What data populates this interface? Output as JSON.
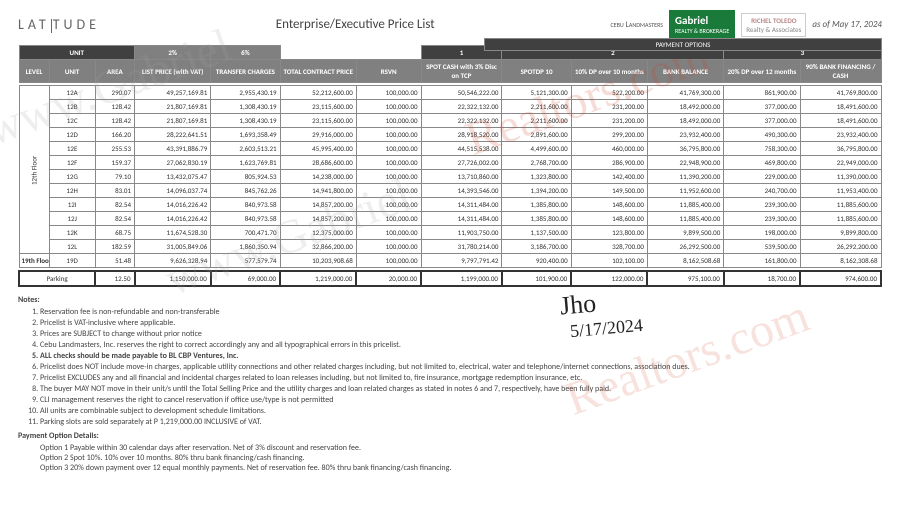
{
  "header": {
    "brand": "LAT | TUDE",
    "title": "Enterprise/Executive Price List",
    "cebu": "CEBU LANDMASTERS",
    "gabriel_name": "Gabriel",
    "gabriel_sub": "REALTY & BROKERAGE",
    "richel_name": "RICHEL TOLEDO",
    "richel_sub": "Realty & Associates",
    "asof": "as of May 17, 2024"
  },
  "columns": {
    "unit_group": "UNIT",
    "level": "LEVEL",
    "unit": "UNIT",
    "area": "AREA",
    "pct2": "2%",
    "pct6": "6%",
    "list_price": "LIST PRICE (with VAT)",
    "transfer": "TRANSFER CHARGES",
    "tcp": "TOTAL CONTRACT PRICE",
    "rsvn": "RSVN",
    "payment_options": "PAYMENT OPTIONS",
    "opt1": "1",
    "opt2": "2",
    "opt3": "3",
    "spot_cash": "SPOT CASH with 3% Disc on TCP",
    "spotdp10": "SPOTDP 10",
    "dp10": "10% DP over 10 months",
    "bank_bal": "BANK BALANCE",
    "dp20": "20% DP over 12 months",
    "fin90": "90% BANK FINANCING / CASH"
  },
  "floors": {
    "f12": "12th Floor",
    "f19": "19th Floor"
  },
  "rows": [
    {
      "unit": "12A",
      "area": "290.07",
      "lp": "49,257,169.81",
      "tc": "2,955,430.19",
      "tcp": "52,212,600.00",
      "rsvn": "100,000.00",
      "sc": "50,546,222.00",
      "sd10": "5,121,300.00",
      "dp10": "522,200.00",
      "bb": "41,769,300.00",
      "dp20": "861,900.00",
      "f90": "41,769,800.00"
    },
    {
      "unit": "12B",
      "area": "128.42",
      "lp": "21,807,169.81",
      "tc": "1,308,430.19",
      "tcp": "23,115,600.00",
      "rsvn": "100,000.00",
      "sc": "22,322,132.00",
      "sd10": "2,211,600.00",
      "dp10": "231,200.00",
      "bb": "18,492,000.00",
      "dp20": "377,000.00",
      "f90": "18,491,600.00"
    },
    {
      "unit": "12C",
      "area": "128.42",
      "lp": "21,807,169.81",
      "tc": "1,308,430.19",
      "tcp": "23,115,600.00",
      "rsvn": "100,000.00",
      "sc": "22,322,132.00",
      "sd10": "2,211,600.00",
      "dp10": "231,200.00",
      "bb": "18,492,000.00",
      "dp20": "377,000.00",
      "f90": "18,491,600.00"
    },
    {
      "unit": "12D",
      "area": "166.20",
      "lp": "28,222,641.51",
      "tc": "1,693,358.49",
      "tcp": "29,916,000.00",
      "rsvn": "100,000.00",
      "sc": "28,918,520.00",
      "sd10": "2,891,600.00",
      "dp10": "299,200.00",
      "bb": "23,932,400.00",
      "dp20": "490,300.00",
      "f90": "23,932,400.00"
    },
    {
      "unit": "12E",
      "area": "255.53",
      "lp": "43,391,886.79",
      "tc": "2,603,513.21",
      "tcp": "45,995,400.00",
      "rsvn": "100,000.00",
      "sc": "44,515,538.00",
      "sd10": "4,499,600.00",
      "dp10": "460,000.00",
      "bb": "36,795,800.00",
      "dp20": "758,300.00",
      "f90": "36,795,800.00"
    },
    {
      "unit": "12F",
      "area": "159.37",
      "lp": "27,062,830.19",
      "tc": "1,623,769.81",
      "tcp": "28,686,600.00",
      "rsvn": "100,000.00",
      "sc": "27,726,002.00",
      "sd10": "2,768,700.00",
      "dp10": "286,900.00",
      "bb": "22,948,900.00",
      "dp20": "469,800.00",
      "f90": "22,949,000.00"
    },
    {
      "unit": "12G",
      "area": "79.10",
      "lp": "13,432,075.47",
      "tc": "805,924.53",
      "tcp": "14,238,000.00",
      "rsvn": "100,000.00",
      "sc": "13,710,860.00",
      "sd10": "1,323,800.00",
      "dp10": "142,400.00",
      "bb": "11,390,200.00",
      "dp20": "229,000.00",
      "f90": "11,390,000.00"
    },
    {
      "unit": "12H",
      "area": "83.01",
      "lp": "14,096,037.74",
      "tc": "845,762.26",
      "tcp": "14,941,800.00",
      "rsvn": "100,000.00",
      "sc": "14,393,546.00",
      "sd10": "1,394,200.00",
      "dp10": "149,500.00",
      "bb": "11,952,600.00",
      "dp20": "240,700.00",
      "f90": "11,953,400.00"
    },
    {
      "unit": "12I",
      "area": "82.54",
      "lp": "14,016,226.42",
      "tc": "840,973.58",
      "tcp": "14,857,200.00",
      "rsvn": "100,000.00",
      "sc": "14,311,484.00",
      "sd10": "1,385,800.00",
      "dp10": "148,600.00",
      "bb": "11,885,400.00",
      "dp20": "239,300.00",
      "f90": "11,885,600.00"
    },
    {
      "unit": "12J",
      "area": "82.54",
      "lp": "14,016,226.42",
      "tc": "840,973.58",
      "tcp": "14,857,200.00",
      "rsvn": "100,000.00",
      "sc": "14,311,484.00",
      "sd10": "1,385,800.00",
      "dp10": "148,600.00",
      "bb": "11,885,400.00",
      "dp20": "239,300.00",
      "f90": "11,885,600.00"
    },
    {
      "unit": "12K",
      "area": "68.75",
      "lp": "11,674,528.30",
      "tc": "700,471.70",
      "tcp": "12,375,000.00",
      "rsvn": "100,000.00",
      "sc": "11,903,750.00",
      "sd10": "1,137,500.00",
      "dp10": "123,800.00",
      "bb": "9,899,500.00",
      "dp20": "198,000.00",
      "f90": "9,899,800.00"
    },
    {
      "unit": "12L",
      "area": "182.59",
      "lp": "31,005,849.06",
      "tc": "1,860,350.94",
      "tcp": "32,866,200.00",
      "rsvn": "100,000.00",
      "sc": "31,780,214.00",
      "sd10": "3,186,700.00",
      "dp10": "328,700.00",
      "bb": "26,292,500.00",
      "dp20": "539,500.00",
      "f90": "26,292,200.00"
    }
  ],
  "row19": {
    "unit": "19D",
    "area": "51.48",
    "lp": "9,626,328.94",
    "tc": "577,579.74",
    "tcp": "10,203,908.68",
    "rsvn": "100,000.00",
    "sc": "9,797,791.42",
    "sd10": "920,400.00",
    "dp10": "102,100.00",
    "bb": "8,162,508.68",
    "dp20": "161,800.00",
    "f90": "8,162,308.68"
  },
  "parking": {
    "label": "Parking",
    "area": "12.50",
    "lp": "1,150,000.00",
    "tc": "69,000.00",
    "tcp": "1,219,000.00",
    "rsvn": "20,000.00",
    "sc": "1,199,000.00",
    "sd10": "101,900.00",
    "dp10": "122,000.00",
    "bb": "975,100.00",
    "dp20": "18,700.00",
    "f90": "974,600.00"
  },
  "notes": {
    "heading": "Notes:",
    "items": [
      "Reservation fee is non-refundable and non-transferable",
      "Pricelist is VAT-inclusive where applicable.",
      "Prices are SUBJECT to change without prior notice",
      "Cebu Landmasters, Inc. reserves the right to correct accordingly any and all typographical errors in this pricelist.",
      "ALL checks should be made payable to BL CBP Ventures, Inc.",
      "Pricelist does NOT include move-in charges, applicable utility connections and other related charges including, but not limited to, electrical, water and telephone/internet connections, association dues.",
      "Pricelist EXCLUDES any and all financial and incidental charges related to loan releases including, but not limited to, fire insurance, mortgage redemption insurance, etc.",
      "The buyer MAY NOT move in their unit/s until the Total Selling  Price and the utility charges and loan related charges as stated in notes 6 and 7, respectively, have been fully paid.",
      "CLI management reserves the right to cancel reservation if office use/type is not permitted",
      "All units are combinable subject to development schedule limitations.",
      "Parking slots are sold separately at P 1,219,000.00 INCLUSIVE of VAT."
    ],
    "pod_heading": "Payment Option Details:",
    "pod": [
      "Option 1    Payable within 30 calendar days after reservation. Net of 3% discount and reservation fee.",
      "Option 2    Spot 10%. 10% over 10 months. 80% thru bank financing/cash financing.",
      "Option 3    20% down payment over 12 equal monthly payments. Net of reservation fee. 80% thru bank financing/cash financing."
    ]
  },
  "watermarks": {
    "w1": "www.Gabriel",
    "w2": "www.Gabriel",
    "w3": "Realtors.com",
    "w4": "Realtors.com"
  },
  "signature": {
    "s1": "Jho",
    "s2": "5/17/2024"
  }
}
